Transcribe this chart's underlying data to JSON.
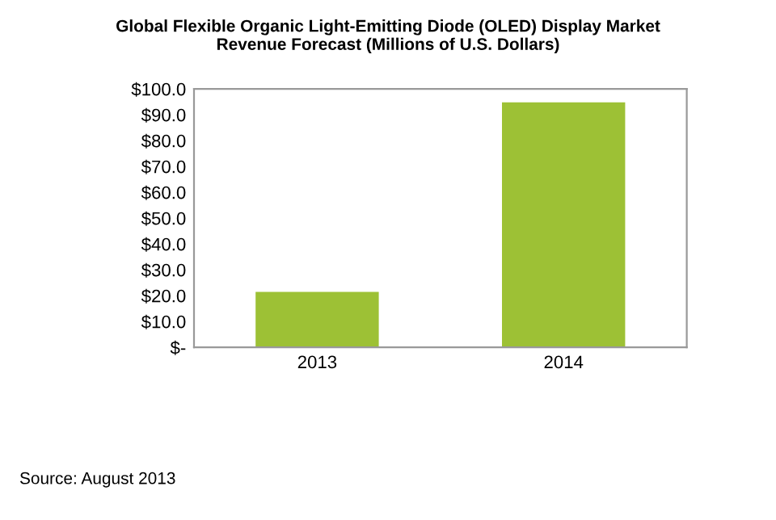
{
  "chart_data": {
    "type": "bar",
    "title": "Global Flexible Organic Light-Emitting Diode (OLED) Display Market\nRevenue Forecast (Millions of U.S. Dollars)",
    "categories": [
      "2013",
      "2014"
    ],
    "series": [
      {
        "color": "#9dc135",
        "values": [
          21.5,
          94.8
        ]
      }
    ],
    "ylim": [
      0,
      100
    ],
    "yticks": [
      {
        "value": 0,
        "label": "$-"
      },
      {
        "value": 10,
        "label": "$10.0"
      },
      {
        "value": 20,
        "label": "$20.0"
      },
      {
        "value": 30,
        "label": "$30.0"
      },
      {
        "value": 40,
        "label": "$40.0"
      },
      {
        "value": 50,
        "label": "$50.0"
      },
      {
        "value": 60,
        "label": "$60.0"
      },
      {
        "value": 70,
        "label": "$70.0"
      },
      {
        "value": 80,
        "label": "$80.0"
      },
      {
        "value": 90,
        "label": "$90.0"
      },
      {
        "value": 100,
        "label": "$100.0"
      }
    ],
    "grid": false,
    "legend": false,
    "annotations": [
      "Source: August 2013"
    ]
  }
}
